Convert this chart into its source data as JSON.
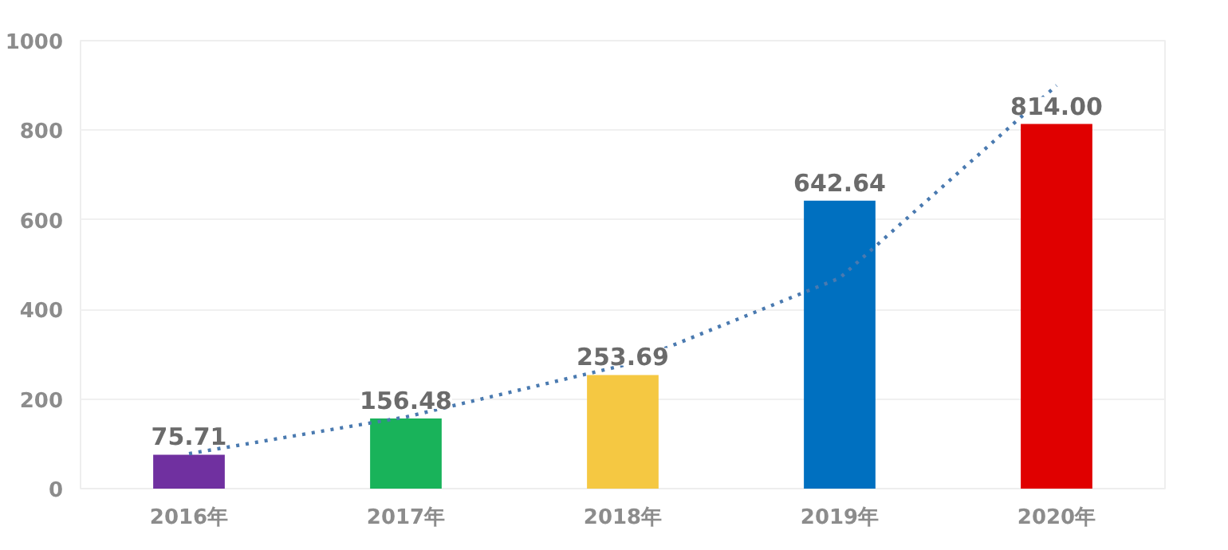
{
  "chart_data": {
    "type": "bar",
    "categories": [
      "2016年",
      "2017年",
      "2018年",
      "2019年",
      "2020年"
    ],
    "series": [
      {
        "colors": [
          "#7030a0",
          "#19b35a",
          "#f5c842",
          "#0070c0",
          "#e00000"
        ],
        "values": [
          75.71,
          156.48,
          253.69,
          642.64,
          814.0
        ]
      },
      {
        "type": "line",
        "color": "#4a7ab0",
        "line_style": "dotted",
        "values": [
          78,
          160,
          275,
          470,
          900
        ]
      }
    ],
    "value_labels": [
      "75.71",
      "156.48",
      "253.69",
      "642.64",
      "814.00"
    ],
    "ylim": [
      0,
      1000
    ],
    "yticks": [
      0,
      200,
      400,
      600,
      800,
      1000
    ],
    "grid": "y"
  }
}
